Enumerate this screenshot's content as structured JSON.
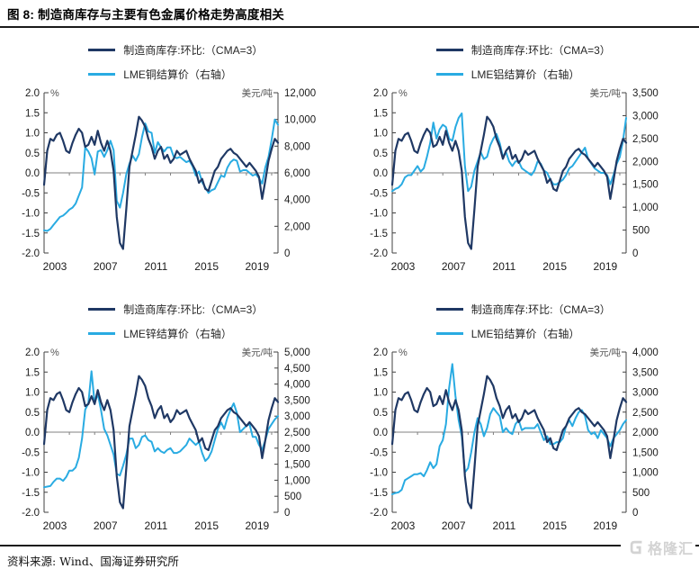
{
  "page": {
    "title": "图 8:  制造商库存与主要有色金属价格走势高度相关",
    "source": "资料来源: Wind、国海证券研究所",
    "logo_text": "格隆汇"
  },
  "colors": {
    "inventory": "#1F3864",
    "price": "#29ABE2",
    "zero_line": "#808080",
    "axis": "#404040",
    "text": "#1a1a1a",
    "unit_label": "#555555",
    "logo": "#d3d3d3"
  },
  "chart_data": {
    "type": "line",
    "layout": "2x2-grid",
    "sampling": "quarterly-estimates",
    "x": {
      "start": 2003,
      "end": 2021.5,
      "step": 0.25,
      "tick_years": [
        2003,
        2007,
        2011,
        2015,
        2019
      ],
      "tick_labels": [
        "2003",
        "2007",
        "2011",
        "2015",
        "2019"
      ]
    },
    "left_axis": {
      "unit": "%",
      "min": -2,
      "max": 2,
      "ticks": [
        "2.0",
        "1.5",
        "1.0",
        "0.5",
        "0.0",
        "-0.5",
        "-1.0",
        "-1.5",
        "-2.0"
      ]
    },
    "inventory": {
      "legend": "制造商库存:环比:（CMA=3）",
      "axis": "left",
      "values": [
        -0.3,
        0.55,
        0.85,
        0.8,
        0.95,
        1.0,
        0.8,
        0.55,
        0.5,
        0.75,
        0.95,
        1.1,
        1.0,
        0.65,
        0.7,
        0.9,
        0.7,
        1.05,
        0.75,
        0.55,
        0.8,
        0.55,
        0.05,
        -1.1,
        -1.75,
        -1.9,
        -0.9,
        0.15,
        0.55,
        0.95,
        1.4,
        1.3,
        1.15,
        0.85,
        0.65,
        0.35,
        0.55,
        0.65,
        0.35,
        0.45,
        0.25,
        0.35,
        0.55,
        0.45,
        0.5,
        0.55,
        0.35,
        0.2,
        0.05,
        -0.25,
        -0.15,
        -0.4,
        -0.45,
        -0.2,
        0.05,
        0.15,
        0.35,
        0.45,
        0.55,
        0.6,
        0.5,
        0.45,
        0.35,
        0.25,
        0.15,
        0.25,
        0.15,
        0.05,
        -0.1,
        -0.65,
        -0.2,
        0.3,
        0.6,
        0.85,
        0.75
      ]
    },
    "charts": [
      {
        "id": "copper",
        "legend_price": "LME铜结算价（右轴）",
        "right_axis": {
          "unit": "美元/吨",
          "min": 0,
          "max": 12000,
          "ticks": [
            "12,000",
            "10,000",
            "8,000",
            "6,000",
            "4,000",
            "2,000",
            "0"
          ]
        },
        "price_values": [
          1700,
          1650,
          1800,
          2100,
          2400,
          2700,
          2800,
          3000,
          3250,
          3400,
          3700,
          4300,
          4900,
          7900,
          7600,
          7100,
          5900,
          7600,
          7700,
          7200,
          7700,
          8400,
          7700,
          3900,
          3400,
          4500,
          5900,
          6700,
          7300,
          6900,
          7400,
          8700,
          9700,
          9100,
          9000,
          7500,
          8300,
          7900,
          7600,
          7900,
          7900,
          7200,
          7100,
          7200,
          7000,
          6800,
          6900,
          6500,
          5800,
          6100,
          5300,
          4900,
          4500,
          4700,
          4800,
          5300,
          5800,
          5700,
          6400,
          6800,
          7000,
          6900,
          6100,
          6200,
          6200,
          6000,
          5800,
          5900,
          5600,
          5200,
          6400,
          7200,
          8500,
          10000,
          9600
        ]
      },
      {
        "id": "aluminum",
        "legend_price": "LME铝结算价（右轴）",
        "right_axis": {
          "unit": "美元/吨",
          "min": 0,
          "max": 3500,
          "ticks": [
            "3,500",
            "3,000",
            "2,500",
            "2,000",
            "1,500",
            "1,000",
            "500",
            "0"
          ]
        },
        "price_values": [
          1350,
          1400,
          1430,
          1500,
          1650,
          1700,
          1700,
          1800,
          1900,
          1780,
          1850,
          2100,
          2400,
          2850,
          2500,
          2700,
          2800,
          2750,
          2500,
          2450,
          2750,
          2950,
          3050,
          1900,
          1350,
          1450,
          1800,
          2000,
          2200,
          2050,
          2100,
          2350,
          2500,
          2600,
          2400,
          2100,
          2200,
          2000,
          1900,
          2000,
          2000,
          1850,
          1800,
          1750,
          1700,
          1800,
          2000,
          1950,
          1800,
          1750,
          1600,
          1500,
          1500,
          1550,
          1600,
          1700,
          1850,
          1900,
          2000,
          2100,
          2200,
          2300,
          2050,
          1950,
          1850,
          1800,
          1750,
          1750,
          1700,
          1500,
          1700,
          1950,
          2100,
          2450,
          2950
        ]
      },
      {
        "id": "zinc",
        "legend_price": "LME锌结算价（右轴）",
        "right_axis": {
          "unit": "美元/吨",
          "min": 0,
          "max": 5000,
          "ticks": [
            "5,000",
            "4,500",
            "4,000",
            "3,500",
            "3,000",
            "2,500",
            "2,000",
            "1,500",
            "1,000",
            "500",
            "0"
          ]
        },
        "price_values": [
          780,
          800,
          820,
          950,
          1050,
          1050,
          980,
          1100,
          1300,
          1300,
          1400,
          1700,
          2300,
          3200,
          3400,
          4400,
          3400,
          3700,
          3200,
          2600,
          2400,
          2100,
          1800,
          1200,
          1150,
          1450,
          1800,
          2300,
          2300,
          2000,
          2100,
          2350,
          2400,
          2250,
          2200,
          1900,
          2000,
          1900,
          1850,
          1950,
          2000,
          1850,
          1850,
          1900,
          2000,
          2100,
          2300,
          2200,
          2100,
          2200,
          1850,
          1600,
          1700,
          1900,
          2250,
          2600,
          2800,
          2600,
          2950,
          3200,
          3400,
          3100,
          2500,
          2600,
          2700,
          2750,
          2350,
          2350,
          2100,
          1950,
          2250,
          2600,
          2750,
          2900,
          3000
        ]
      },
      {
        "id": "lead",
        "legend_price": "LME铅结算价（右轴）",
        "right_axis": {
          "unit": "美元/吨",
          "min": 0,
          "max": 4000,
          "ticks": [
            "4,000",
            "3,500",
            "3,000",
            "2,500",
            "2,000",
            "1,500",
            "1,000",
            "500",
            "0"
          ]
        },
        "price_values": [
          450,
          480,
          500,
          560,
          800,
          850,
          900,
          950,
          950,
          980,
          900,
          1050,
          1250,
          1100,
          1200,
          1650,
          1800,
          2200,
          3100,
          3700,
          2900,
          2300,
          1900,
          1000,
          1100,
          1500,
          2000,
          2350,
          2200,
          1900,
          2100,
          2450,
          2600,
          2500,
          2400,
          2000,
          2100,
          2000,
          1950,
          2200,
          2300,
          2050,
          2100,
          2100,
          2100,
          2100,
          2200,
          2000,
          1800,
          1900,
          1700,
          1700,
          1750,
          1750,
          1850,
          2150,
          2300,
          2150,
          2350,
          2500,
          2550,
          2400,
          2050,
          1950,
          2000,
          1850,
          2050,
          1950,
          1850,
          1650,
          1850,
          1950,
          2050,
          2200,
          2300
        ]
      }
    ]
  }
}
